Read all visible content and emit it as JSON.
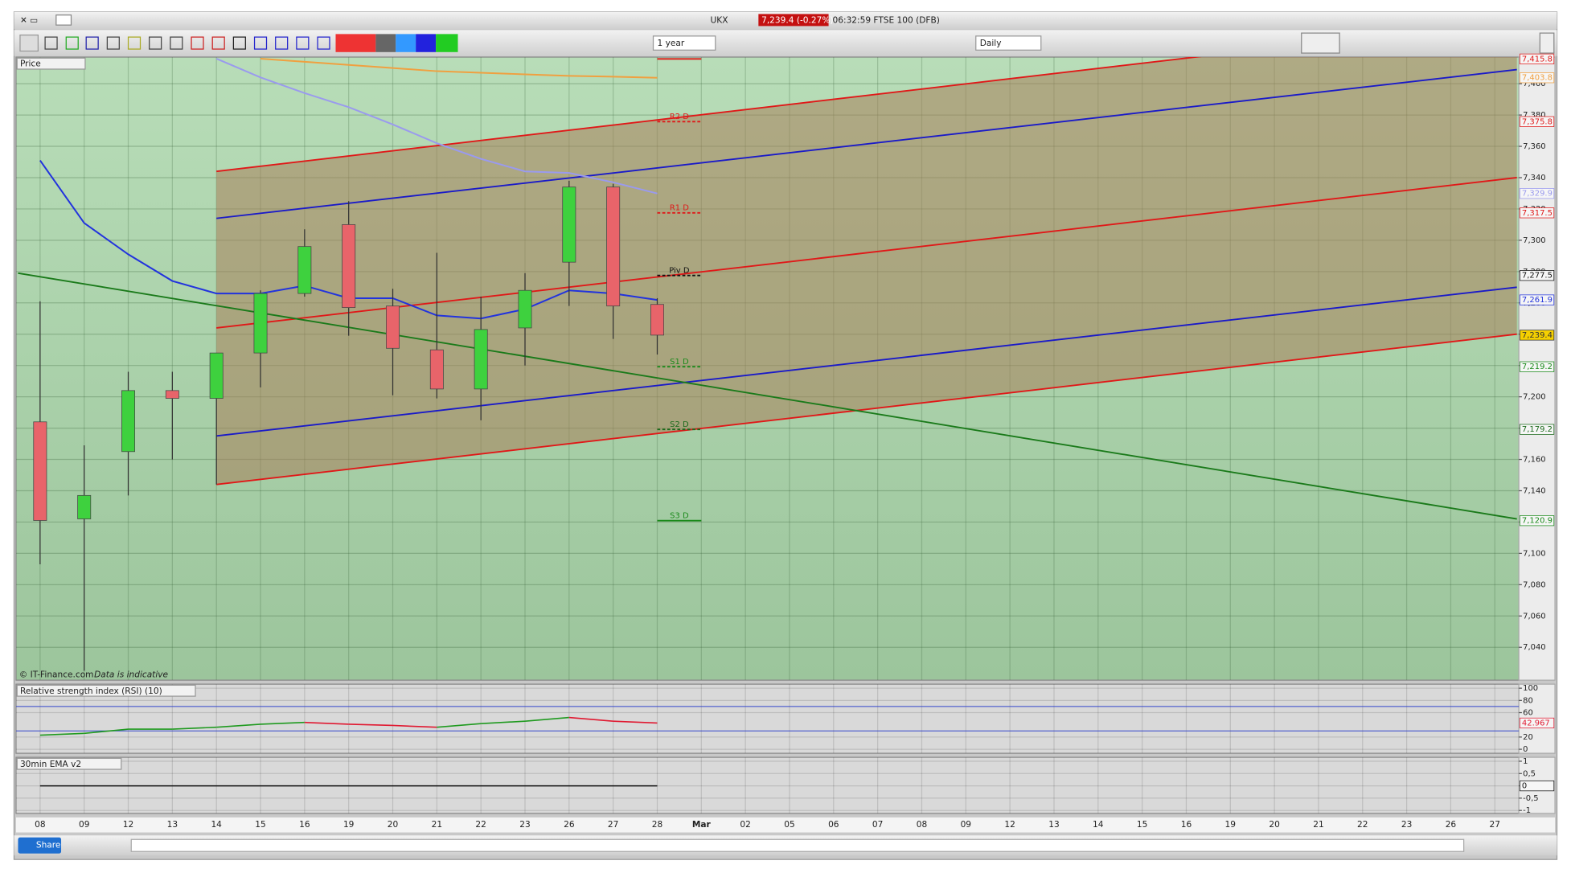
{
  "window": {
    "symbol": "UKX",
    "quote": "7,239.4 (-0.27%)",
    "status": "06:32:59 FTSE 100 (DFB)"
  },
  "toolbar": {
    "period": "1 year",
    "interval": "Daily"
  },
  "credits": {
    "source": "© IT-Finance.com",
    "note": "Data is indicative"
  },
  "footer": {
    "share": "Share"
  },
  "chart_data": [
    {
      "type": "candlestick",
      "title": "Price",
      "categories": [
        "08",
        "09",
        "12",
        "13",
        "14",
        "15",
        "16",
        "19",
        "20",
        "21",
        "22",
        "23",
        "26",
        "27",
        "28",
        "Mar",
        "02",
        "05",
        "06",
        "07",
        "08",
        "09",
        "12",
        "13",
        "14",
        "15",
        "16",
        "19",
        "20",
        "21",
        "22",
        "23",
        "26",
        "27"
      ],
      "open": [
        7184,
        7122,
        7165,
        7204,
        7199,
        7228,
        7266,
        7310,
        7258,
        7230,
        7205,
        7244,
        7286,
        7334,
        7259,
        null,
        null,
        null,
        null,
        null,
        null,
        null,
        null,
        null,
        null,
        null,
        null,
        null,
        null,
        null,
        null,
        null,
        null,
        null
      ],
      "high": [
        7261,
        7169,
        7216,
        7216,
        7228,
        7268,
        7307,
        7325,
        7269,
        7292,
        7264,
        7279,
        7338,
        7336,
        7263,
        null,
        null,
        null,
        null,
        null,
        null,
        null,
        null,
        null,
        null,
        null,
        null,
        null,
        null,
        null,
        null,
        null,
        null,
        null
      ],
      "low": [
        7093,
        7025,
        7137,
        7160,
        7144,
        7206,
        7264,
        7239,
        7201,
        7199,
        7185,
        7220,
        7258,
        7237,
        7227,
        null,
        null,
        null,
        null,
        null,
        null,
        null,
        null,
        null,
        null,
        null,
        null,
        null,
        null,
        null,
        null,
        null,
        null,
        null
      ],
      "close": [
        7121,
        7137,
        7204,
        7199,
        7228,
        7266,
        7296,
        7257,
        7231,
        7205,
        7243,
        7268,
        7334,
        7258,
        7239.4,
        null,
        null,
        null,
        null,
        null,
        null,
        null,
        null,
        null,
        null,
        null,
        null,
        null,
        null,
        null,
        null,
        null,
        null,
        null
      ],
      "close_label": "7,239.4",
      "up_color": "#3ed13e",
      "down_color": "#e8646a",
      "channel_fill": "#a8805a",
      "ylim": [
        7019,
        7417
      ],
      "yticks": [
        {
          "value": 7040,
          "label": "7,040"
        },
        {
          "value": 7060,
          "label": "7,060"
        },
        {
          "value": 7080,
          "label": "7,080"
        },
        {
          "value": 7100,
          "label": "7,100"
        },
        {
          "value": 7120,
          "label": "7,120"
        },
        {
          "value": 7140,
          "label": "7,140"
        },
        {
          "value": 7160,
          "label": "7,160"
        },
        {
          "value": 7180,
          "label": "7,180"
        },
        {
          "value": 7200,
          "label": "7,200"
        },
        {
          "value": 7220,
          "label": "7,220"
        },
        {
          "value": 7240,
          "label": "7,240"
        },
        {
          "value": 7260,
          "label": "7,260"
        },
        {
          "value": 7280,
          "label": "7,280"
        },
        {
          "value": 7300,
          "label": "7,300"
        },
        {
          "value": 7320,
          "label": "7,320"
        },
        {
          "value": 7340,
          "label": "7,340"
        },
        {
          "value": 7360,
          "label": "7,360"
        },
        {
          "value": 7380,
          "label": "7,380"
        },
        {
          "value": 7400,
          "label": "7,400"
        }
      ],
      "grid": true,
      "series": [
        {
          "color": "#2233dd",
          "values": [
            7351,
            7311,
            7291,
            7274,
            7266,
            7266,
            7271,
            7263,
            7263,
            7252,
            7250,
            7256,
            7268,
            7266,
            7261.9,
            null,
            null,
            null,
            null,
            null,
            null,
            null,
            null,
            null,
            null,
            null,
            null,
            null,
            null,
            null,
            null,
            null,
            null,
            null
          ],
          "last_label": "7,261.9"
        },
        {
          "color": "#9a9aee",
          "values": [
            null,
            null,
            null,
            null,
            7416,
            7404,
            7394,
            7385,
            7374,
            7362,
            7352,
            7344,
            7343,
            7337,
            7329.9,
            null,
            null,
            null,
            null,
            null,
            null,
            null,
            null,
            null,
            null,
            null,
            null,
            null,
            null,
            null,
            null,
            null,
            null,
            null
          ],
          "last_label": "7,329.9"
        },
        {
          "color": "#f0a040",
          "values": [
            null,
            null,
            null,
            null,
            null,
            7416,
            7414,
            7412,
            7410,
            7408,
            7407,
            7406,
            7405,
            7404.5,
            7403.8,
            null,
            null,
            null,
            null,
            null,
            null,
            null,
            null,
            null,
            null,
            null,
            null,
            null,
            null,
            null,
            null,
            null,
            null,
            null
          ],
          "last_label": "7,403.8"
        }
      ],
      "trend_lines": [
        {
          "color": "#e01818",
          "x": [
            4,
            33.5
          ],
          "values": [
            7344,
            7441
          ]
        },
        {
          "color": "#e01818",
          "x": [
            4,
            33.5
          ],
          "values": [
            7244,
            7340
          ]
        },
        {
          "color": "#e01818",
          "x": [
            4,
            33.5
          ],
          "values": [
            7144,
            7240
          ]
        },
        {
          "color": "#1a1ac8",
          "x": [
            4,
            33.5
          ],
          "values": [
            7314,
            7409
          ]
        },
        {
          "color": "#1a1ac8",
          "x": [
            4,
            33.5
          ],
          "values": [
            7175,
            7270
          ]
        },
        {
          "color": "#1a7a1a",
          "x": [
            -0.5,
            33.5
          ],
          "values": [
            7279,
            7122
          ]
        }
      ],
      "pivots": [
        {
          "value": 7415.8,
          "value_label": "7,415.8",
          "color": "#e01818",
          "dash": false
        },
        {
          "name": "R2 D",
          "value": 7375.8,
          "value_label": "7,375.8",
          "color": "#e01818",
          "dash": true
        },
        {
          "name": "R1 D",
          "value": 7317.5,
          "value_label": "7,317.5",
          "color": "#e01818",
          "dash": true
        },
        {
          "name": "Piv D",
          "value": 7277.5,
          "value_label": "7,277.5",
          "color": "#111111",
          "dash": true
        },
        {
          "name": "S1 D",
          "value": 7219.2,
          "value_label": "7,219.2",
          "color": "#1a8a1a",
          "dash": true
        },
        {
          "name": "S2 D",
          "value": 7179.2,
          "value_label": "7,179.2",
          "color": "#1a6a1a",
          "dash": true
        },
        {
          "name": "S3 D",
          "value": 7120.9,
          "value_label": "7,120.9",
          "color": "#1a8a1a",
          "dash": false
        }
      ]
    },
    {
      "type": "line",
      "title": "Relative strength index (RSI) (10)",
      "ylim": [
        -6.6,
        106.6
      ],
      "yticks": [
        0,
        20,
        60,
        80,
        100
      ],
      "levels": [
        30,
        70
      ],
      "up_color": "#1f9a1f",
      "down_color": "#e01830",
      "series": [
        {
          "values": [
            23,
            26,
            33,
            33,
            36,
            41,
            44,
            41,
            39,
            36,
            42,
            46,
            52,
            46,
            42.967,
            null,
            null,
            null,
            null,
            null,
            null,
            null,
            null,
            null,
            null,
            null,
            null,
            null,
            null,
            null,
            null,
            null,
            null,
            null
          ]
        }
      ]
    },
    {
      "type": "line",
      "title": "30min EMA v2",
      "ylim": [
        -1.12,
        1.16
      ],
      "yticks": [
        1,
        {
          "value": 0.5,
          "label": "0,5"
        },
        0,
        {
          "value": -0.5,
          "label": "-0,5"
        },
        -1
      ],
      "series": [
        {
          "color": "#111111",
          "values": [
            0,
            0,
            0,
            0,
            0,
            0,
            0,
            0,
            0,
            0,
            0,
            0,
            0,
            0,
            0,
            null,
            null,
            null,
            null,
            null,
            null,
            null,
            null,
            null,
            null,
            null,
            null,
            null,
            null,
            null,
            null,
            null,
            null,
            null
          ]
        }
      ]
    }
  ]
}
